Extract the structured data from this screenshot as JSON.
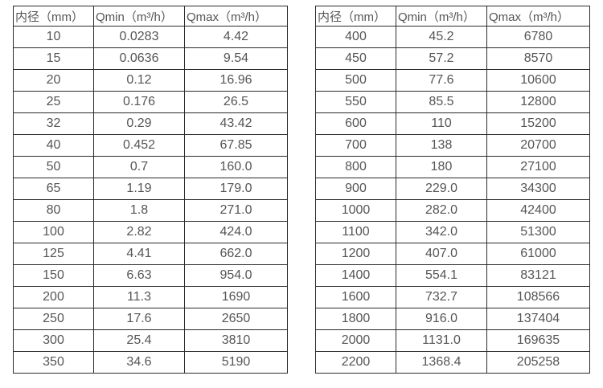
{
  "page": {
    "background": "#ffffff",
    "border_color": "#2b2b2b",
    "text_color": "#555555"
  },
  "tables": [
    {
      "name": "flow-rate-table-small-diameters",
      "headers": [
        "内径（mm）",
        "Qmin（m³/h）",
        "Qmax（m³/h）"
      ],
      "rows": [
        [
          "10",
          "0.0283",
          "4.42"
        ],
        [
          "15",
          "0.0636",
          "9.54"
        ],
        [
          "20",
          "0.12",
          "16.96"
        ],
        [
          "25",
          "0.176",
          "26.5"
        ],
        [
          "32",
          "0.29",
          "43.42"
        ],
        [
          "40",
          "0.452",
          "67.85"
        ],
        [
          "50",
          "0.7",
          "160.0"
        ],
        [
          "65",
          "1.19",
          "179.0"
        ],
        [
          "80",
          "1.8",
          "271.0"
        ],
        [
          "100",
          "2.82",
          "424.0"
        ],
        [
          "125",
          "4.41",
          "662.0"
        ],
        [
          "150",
          "6.63",
          "954.0"
        ],
        [
          "200",
          "11.3",
          "1690"
        ],
        [
          "250",
          "17.6",
          "2650"
        ],
        [
          "300",
          "25.4",
          "3810"
        ],
        [
          "350",
          "34.6",
          "5190"
        ]
      ]
    },
    {
      "name": "flow-rate-table-large-diameters",
      "headers": [
        "内径（mm）",
        "Qmin（m³/h）",
        "Qmax（m³/h）"
      ],
      "rows": [
        [
          "400",
          "45.2",
          "6780"
        ],
        [
          "450",
          "57.2",
          "8570"
        ],
        [
          "500",
          "77.6",
          "10600"
        ],
        [
          "550",
          "85.5",
          "12800"
        ],
        [
          "600",
          "110",
          "15200"
        ],
        [
          "700",
          "138",
          "20700"
        ],
        [
          "800",
          "180",
          "27100"
        ],
        [
          "900",
          "229.0",
          "34300"
        ],
        [
          "1000",
          "282.0",
          "42400"
        ],
        [
          "1100",
          "342.0",
          "51300"
        ],
        [
          "1200",
          "407.0",
          "61000"
        ],
        [
          "1400",
          "554.1",
          "83121"
        ],
        [
          "1600",
          "732.7",
          "108566"
        ],
        [
          "1800",
          "916.0",
          "137404"
        ],
        [
          "2000",
          "1131.0",
          "169635"
        ],
        [
          "2200",
          "1368.4",
          "205258"
        ]
      ]
    }
  ]
}
